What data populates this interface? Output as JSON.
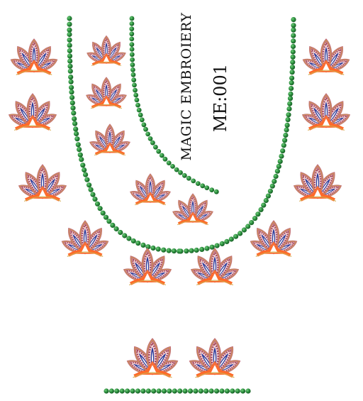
{
  "design": {
    "brand": "MAGIC EMBROIERY",
    "code": "ME:001"
  },
  "colors": {
    "bead": "#2a8a3c",
    "bead_highlight": "#4fb35c",
    "petal_outline": "#c06b77",
    "petal_fill": "#9d3d52",
    "vein_blue": "#2b3b9a",
    "center_orange": "#ff6a2a",
    "gold_edge": "#d4a84a",
    "text": "#111111"
  },
  "motifs": {
    "icon": "paisley-fan-motif",
    "petals_per_motif": 5
  }
}
